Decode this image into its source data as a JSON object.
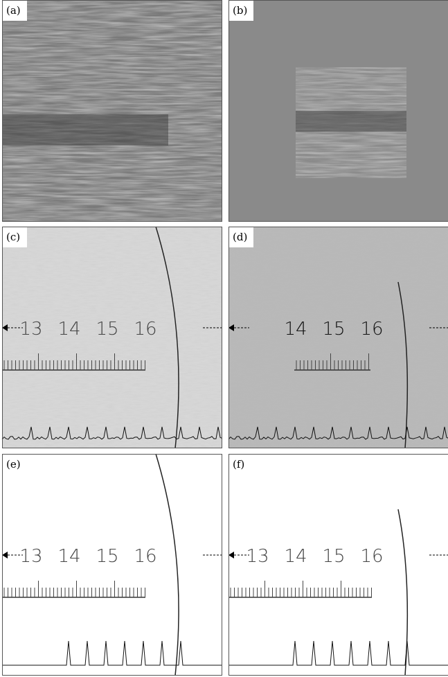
{
  "panels": [
    {
      "label": "(a)"
    },
    {
      "label": "(b)"
    },
    {
      "label": "(c)",
      "scale": [
        "13",
        "14",
        "15",
        "16"
      ]
    },
    {
      "label": "(d)",
      "scale": [
        "14",
        "15",
        "16"
      ]
    },
    {
      "label": "(e)",
      "scale": [
        "13",
        "14",
        "15",
        "16"
      ]
    },
    {
      "label": "(f)",
      "scale": [
        "13",
        "14",
        "15",
        "16"
      ]
    }
  ]
}
